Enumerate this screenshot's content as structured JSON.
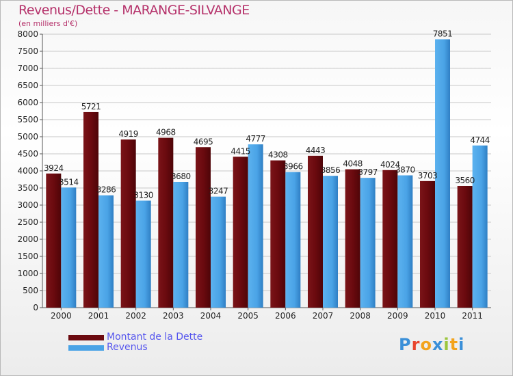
{
  "header": {
    "title": "Revenus/Dette - MARANGE-SILVANGE",
    "subtitle": "(en milliers d'€)"
  },
  "logo": {
    "text": "Proxiti"
  },
  "colors": {
    "dette": "#6b0a0f",
    "revenus": "#4aa3e6",
    "title": "#b5316a",
    "legend_text": "#5555ee"
  },
  "chart_data": {
    "type": "bar",
    "categories": [
      "2000",
      "2001",
      "2002",
      "2003",
      "2004",
      "2005",
      "2006",
      "2007",
      "2008",
      "2009",
      "2010",
      "2011"
    ],
    "series": [
      {
        "name": "Montant de la Dette",
        "values": [
          3924,
          5721,
          4919,
          4968,
          4695,
          4415,
          4308,
          4443,
          4048,
          4024,
          3703,
          3560
        ]
      },
      {
        "name": "Revenus",
        "values": [
          3514,
          3286,
          3130,
          3680,
          3247,
          4777,
          3966,
          3856,
          3797,
          3870,
          7851,
          4744
        ]
      }
    ],
    "ylim": [
      0,
      8000
    ],
    "ytick_step": 500,
    "grid": true,
    "legend": "bottom-left"
  }
}
